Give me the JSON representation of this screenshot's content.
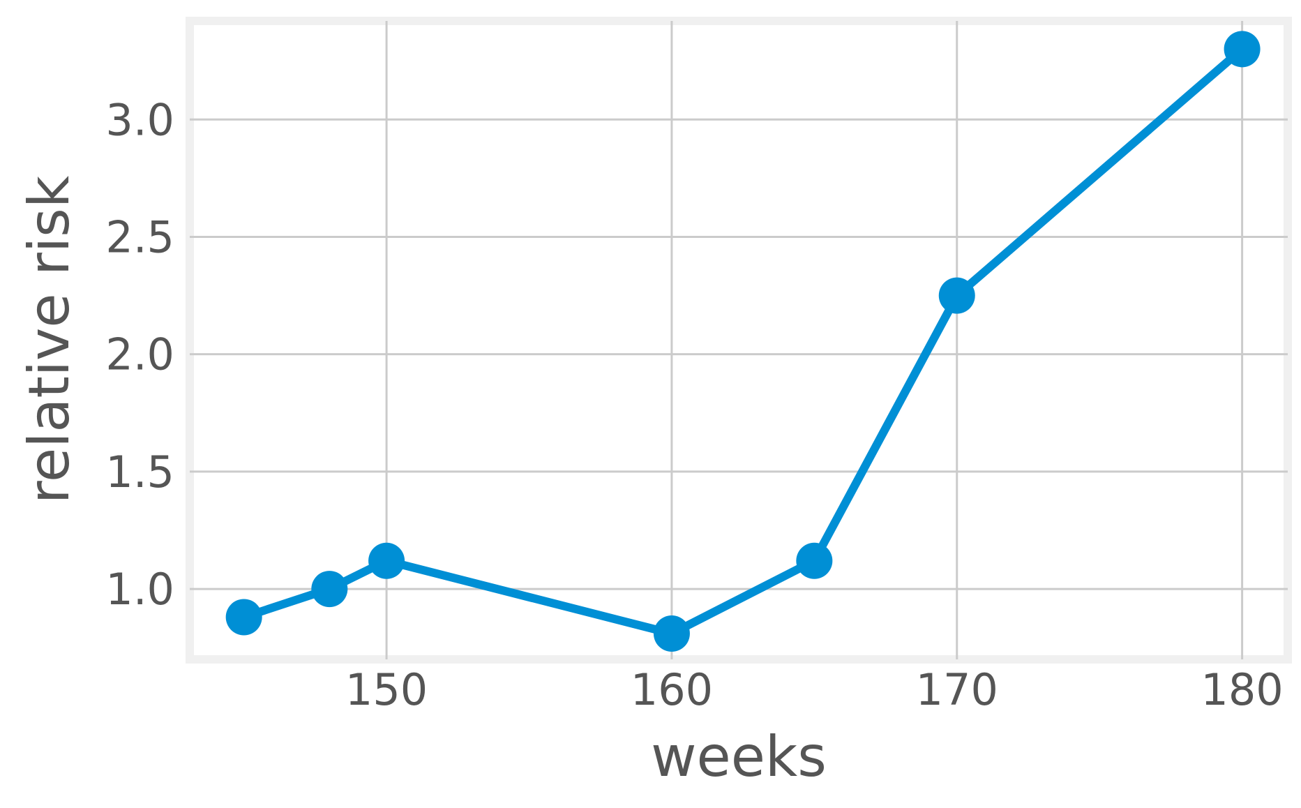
{
  "chart_data": {
    "type": "line",
    "title": "",
    "xlabel": "weeks",
    "ylabel": "relative risk",
    "x": [
      145,
      148,
      150,
      160,
      165,
      170,
      180
    ],
    "series": [
      {
        "values": [
          0.88,
          1.0,
          1.12,
          0.81,
          1.12,
          2.25,
          3.3
        ]
      }
    ],
    "xlim": [
      143.1,
      181.6
    ],
    "ylim": [
      0.7,
      3.42
    ],
    "xticks": [
      150,
      160,
      170,
      180
    ],
    "xtick_labels": [
      "150",
      "160",
      "170",
      "180"
    ],
    "yticks": [
      1.0,
      1.5,
      2.0,
      2.5,
      3.0
    ],
    "ytick_labels": [
      "1.0",
      "1.5",
      "2.0",
      "2.5",
      "3.0"
    ],
    "grid": true,
    "legend": "none",
    "colors": {
      "series": "#008fd5",
      "frame": "#f0f0f0",
      "grid": "#cbcbcb",
      "text": "#555555"
    }
  }
}
